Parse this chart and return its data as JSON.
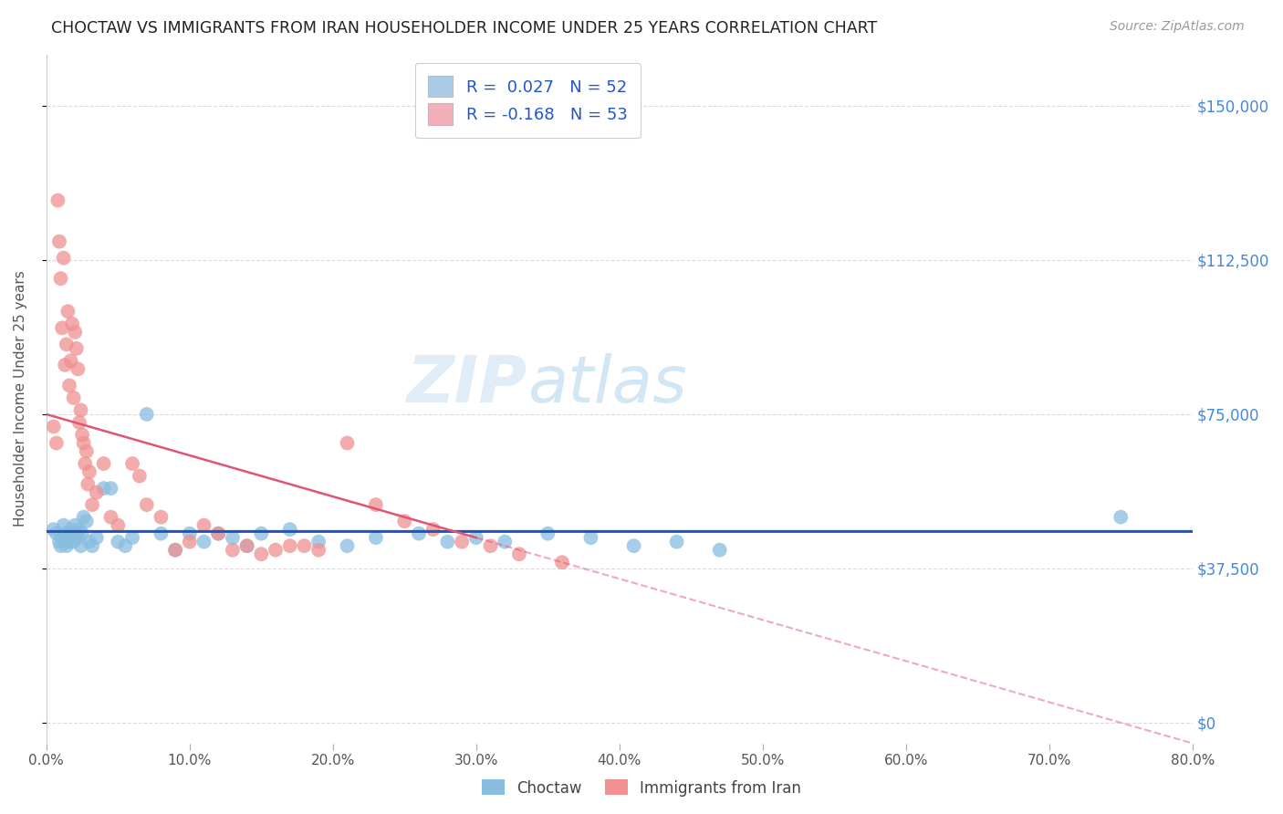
{
  "title": "CHOCTAW VS IMMIGRANTS FROM IRAN HOUSEHOLDER INCOME UNDER 25 YEARS CORRELATION CHART",
  "source": "Source: ZipAtlas.com",
  "ylabel": "Householder Income Under 25 years",
  "xlabel_ticks": [
    "0.0%",
    "10.0%",
    "20.0%",
    "30.0%",
    "40.0%",
    "50.0%",
    "60.0%",
    "70.0%",
    "80.0%"
  ],
  "xlabel_vals": [
    0.0,
    10.0,
    20.0,
    30.0,
    40.0,
    50.0,
    60.0,
    70.0,
    80.0
  ],
  "ytick_labels": [
    "$0",
    "$37,500",
    "$75,000",
    "$112,500",
    "$150,000"
  ],
  "ytick_vals": [
    0,
    37500,
    75000,
    112500,
    150000
  ],
  "ylim": [
    -5000,
    162500
  ],
  "xlim": [
    0,
    80
  ],
  "choctaw_color": "#89bde0",
  "iran_color": "#f09090",
  "choctaw_line_color": "#2255bb",
  "iran_line_color": "#e05575",
  "watermark_zip": "ZIP",
  "watermark_atlas": "atlas",
  "legend_label_1": "R =  0.027   N = 52",
  "legend_label_2": "R = -0.168   N = 53",
  "legend_color_1": "#aacce8",
  "legend_color_2": "#f4b0b8",
  "choctaw_x": [
    0.5,
    0.7,
    0.9,
    1.0,
    1.1,
    1.2,
    1.3,
    1.4,
    1.5,
    1.6,
    1.7,
    1.8,
    1.9,
    2.0,
    2.1,
    2.2,
    2.3,
    2.4,
    2.5,
    2.6,
    2.8,
    3.0,
    3.2,
    3.5,
    4.0,
    4.5,
    5.0,
    5.5,
    6.0,
    7.0,
    8.0,
    9.0,
    10.0,
    11.0,
    12.0,
    13.0,
    14.0,
    15.0,
    17.0,
    19.0,
    21.0,
    23.0,
    26.0,
    28.0,
    30.0,
    32.0,
    35.0,
    38.0,
    41.0,
    44.0,
    47.0,
    75.0
  ],
  "choctaw_y": [
    47000,
    46000,
    44000,
    43000,
    45000,
    48000,
    46000,
    43000,
    44000,
    45000,
    47000,
    46000,
    44000,
    48000,
    46000,
    45000,
    47000,
    43000,
    46000,
    50000,
    49000,
    44000,
    43000,
    45000,
    57000,
    57000,
    44000,
    43000,
    45000,
    75000,
    46000,
    42000,
    46000,
    44000,
    46000,
    45000,
    43000,
    46000,
    47000,
    44000,
    43000,
    45000,
    46000,
    44000,
    45000,
    44000,
    46000,
    45000,
    43000,
    44000,
    42000,
    50000
  ],
  "iran_x": [
    0.5,
    0.7,
    0.8,
    0.9,
    1.0,
    1.1,
    1.2,
    1.3,
    1.4,
    1.5,
    1.6,
    1.7,
    1.8,
    1.9,
    2.0,
    2.1,
    2.2,
    2.3,
    2.4,
    2.5,
    2.6,
    2.7,
    2.8,
    2.9,
    3.0,
    3.2,
    3.5,
    4.0,
    4.5,
    5.0,
    6.0,
    7.0,
    8.0,
    9.0,
    10.0,
    11.0,
    12.0,
    13.0,
    14.0,
    15.0,
    16.0,
    17.0,
    18.0,
    19.0,
    21.0,
    23.0,
    25.0,
    27.0,
    29.0,
    31.0,
    33.0,
    36.0,
    6.5
  ],
  "iran_y": [
    72000,
    68000,
    127000,
    117000,
    108000,
    96000,
    113000,
    87000,
    92000,
    100000,
    82000,
    88000,
    97000,
    79000,
    95000,
    91000,
    86000,
    73000,
    76000,
    70000,
    68000,
    63000,
    66000,
    58000,
    61000,
    53000,
    56000,
    63000,
    50000,
    48000,
    63000,
    53000,
    50000,
    42000,
    44000,
    48000,
    46000,
    42000,
    43000,
    41000,
    42000,
    43000,
    43000,
    42000,
    68000,
    53000,
    49000,
    47000,
    44000,
    43000,
    41000,
    39000,
    60000
  ],
  "iran_solid_x_end": 30.0,
  "bottom_legend_label_1": "Choctaw",
  "bottom_legend_label_2": "Immigrants from Iran"
}
